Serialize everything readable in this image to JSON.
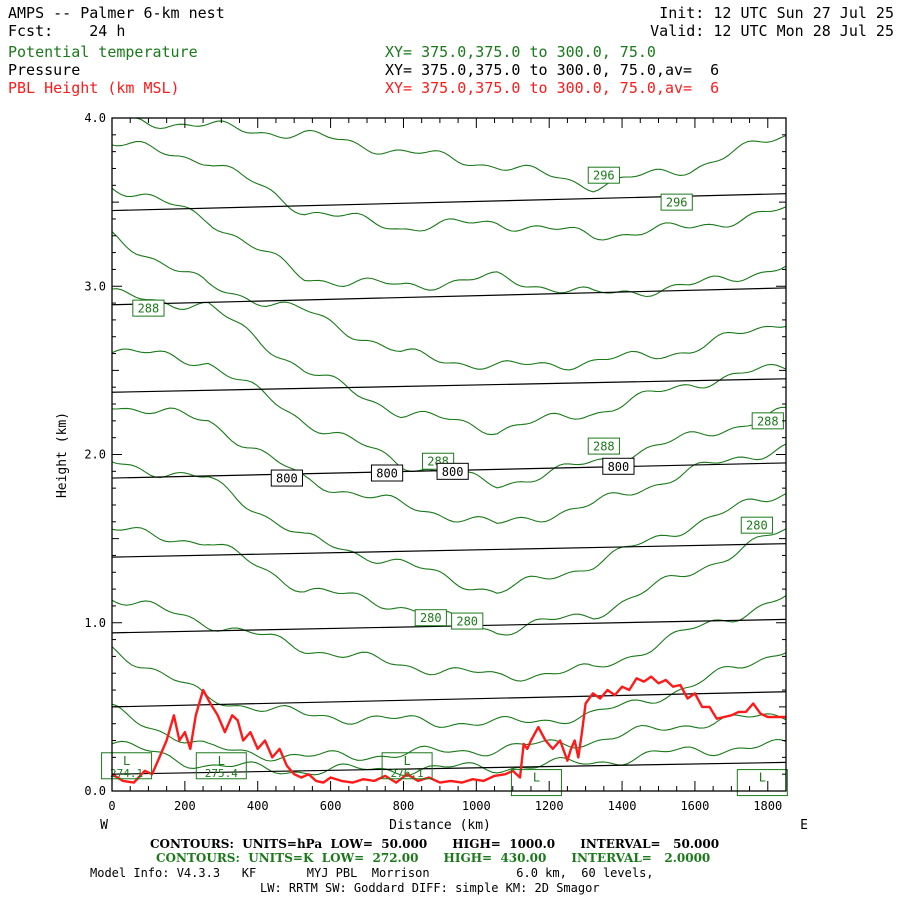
{
  "header": {
    "model_title": "AMPS -- Palmer 6-km nest",
    "fcst": "Fcst:    24 h",
    "init": "Init: 12 UTC Sun 27 Jul 25",
    "valid": "Valid: 12 UTC Mon 28 Jul 25",
    "field1_name": "Potential temperature",
    "field1_xy": "XY= 375.0,375.0 to 300.0, 75.0",
    "field2_name": "Pressure",
    "field2_xy": "XY= 375.0,375.0 to 300.0, 75.0,av=  6",
    "field3_name": "PBL Height (km MSL)",
    "field3_xy": "XY= 375.0,375.0 to 300.0, 75.0,av=  6"
  },
  "colors": {
    "theta": "#1a7a1a",
    "pressure": "#000000",
    "pbl": "#ff1a1a"
  },
  "chart_data": {
    "type": "line",
    "xlabel": "Distance (km)",
    "ylabel": "Height (km)",
    "xlim": [
      0,
      1850
    ],
    "ylim": [
      0,
      4.0
    ],
    "x_ticks": [
      "0",
      "200",
      "400",
      "600",
      "800",
      "1000",
      "1200",
      "1400",
      "1600",
      "1800"
    ],
    "y_ticks": [
      "0.0",
      "1.0",
      "2.0",
      "3.0",
      "4.0"
    ],
    "left_label": "W",
    "right_label": "E",
    "pressure_isobars": [
      {
        "left": 0.1,
        "right": 0.17
      },
      {
        "left": 0.5,
        "right": 0.59
      },
      {
        "left": 0.94,
        "right": 1.02
      },
      {
        "left": 1.39,
        "right": 1.47
      },
      {
        "left": 1.86,
        "right": 1.95
      },
      {
        "left": 2.37,
        "right": 2.45
      },
      {
        "left": 2.89,
        "right": 2.99
      },
      {
        "left": 3.45,
        "right": 3.55
      }
    ],
    "pressure_labels": [
      {
        "text": "800",
        "x": 480,
        "y": 1.86
      },
      {
        "text": "800",
        "x": 755,
        "y": 1.89
      },
      {
        "text": "800",
        "x": 935,
        "y": 1.9
      },
      {
        "text": "800",
        "x": 1390,
        "y": 1.93
      }
    ],
    "theta_contours": [
      {
        "base": [
          0.28,
          0.15,
          0.12,
          0.13,
          0.14,
          0.17,
          0.24,
          0.27
        ]
      },
      {
        "base": [
          0.48,
          0.25,
          0.2,
          0.22,
          0.25,
          0.3,
          0.4,
          0.45
        ]
      },
      {
        "base": [
          0.85,
          0.55,
          0.45,
          0.42,
          0.4,
          0.45,
          0.62,
          0.85
        ]
      },
      {
        "base": [
          1.15,
          1.0,
          0.85,
          0.75,
          0.68,
          0.72,
          0.95,
          1.15
        ]
      },
      {
        "base": [
          1.55,
          1.48,
          1.2,
          1.1,
          0.95,
          1.05,
          1.3,
          1.55
        ]
      },
      {
        "base": [
          1.95,
          1.85,
          1.5,
          1.35,
          1.18,
          1.35,
          1.58,
          1.78
        ]
      },
      {
        "base": [
          2.3,
          2.2,
          1.85,
          1.7,
          1.58,
          1.7,
          1.9,
          2.05
        ]
      },
      {
        "base": [
          2.62,
          2.55,
          2.2,
          1.95,
          1.82,
          1.95,
          2.1,
          2.25
        ]
      },
      {
        "base": [
          2.95,
          2.88,
          2.5,
          2.25,
          2.15,
          2.25,
          2.42,
          2.52
        ]
      },
      {
        "base": [
          3.3,
          3.0,
          2.85,
          2.6,
          2.52,
          2.55,
          2.62,
          2.8
        ]
      },
      {
        "base": [
          3.6,
          3.4,
          3.05,
          3.0,
          3.05,
          2.95,
          3.0,
          3.12
        ]
      },
      {
        "base": [
          3.85,
          3.75,
          3.45,
          3.35,
          3.38,
          3.3,
          3.35,
          3.45
        ]
      },
      {
        "base": [
          4.0,
          3.95,
          3.9,
          3.8,
          3.72,
          3.6,
          3.7,
          3.9
        ]
      }
    ],
    "theta_labels": [
      {
        "text": "296",
        "x": 1350,
        "y": 3.66
      },
      {
        "text": "296",
        "x": 1550,
        "y": 3.5
      },
      {
        "text": "288",
        "x": 100,
        "y": 2.87
      },
      {
        "text": "288",
        "x": 1800,
        "y": 2.2
      },
      {
        "text": "288",
        "x": 1350,
        "y": 2.05
      },
      {
        "text": "288",
        "x": 895,
        "y": 1.96
      },
      {
        "text": "280",
        "x": 1770,
        "y": 1.58
      },
      {
        "text": "280",
        "x": 875,
        "y": 1.03
      },
      {
        "text": "280",
        "x": 975,
        "y": 1.01
      }
    ],
    "pbl_series": {
      "x": [
        0,
        30,
        60,
        90,
        110,
        130,
        150,
        170,
        185,
        200,
        215,
        230,
        250,
        270,
        290,
        310,
        330,
        345,
        360,
        380,
        400,
        420,
        440,
        460,
        480,
        500,
        520,
        540,
        560,
        580,
        600,
        630,
        660,
        690,
        720,
        750,
        780,
        810,
        840,
        870,
        900,
        930,
        960,
        990,
        1020,
        1050,
        1080,
        1100,
        1120,
        1130,
        1140,
        1150,
        1170,
        1190,
        1210,
        1230,
        1250,
        1260,
        1270,
        1280,
        1290,
        1300,
        1320,
        1340,
        1360,
        1380,
        1400,
        1420,
        1440,
        1460,
        1480,
        1500,
        1520,
        1540,
        1560,
        1580,
        1600,
        1620,
        1640,
        1660,
        1680,
        1700,
        1720,
        1740,
        1760,
        1780,
        1800,
        1820,
        1850
      ],
      "y": [
        0.1,
        0.06,
        0.05,
        0.12,
        0.1,
        0.2,
        0.3,
        0.45,
        0.3,
        0.35,
        0.25,
        0.45,
        0.6,
        0.52,
        0.45,
        0.35,
        0.45,
        0.42,
        0.3,
        0.35,
        0.25,
        0.3,
        0.2,
        0.25,
        0.15,
        0.1,
        0.08,
        0.1,
        0.06,
        0.05,
        0.08,
        0.06,
        0.05,
        0.07,
        0.06,
        0.09,
        0.05,
        0.1,
        0.06,
        0.08,
        0.05,
        0.06,
        0.05,
        0.07,
        0.06,
        0.09,
        0.1,
        0.12,
        0.08,
        0.28,
        0.25,
        0.3,
        0.38,
        0.3,
        0.25,
        0.3,
        0.18,
        0.25,
        0.3,
        0.2,
        0.35,
        0.52,
        0.58,
        0.55,
        0.6,
        0.57,
        0.62,
        0.6,
        0.67,
        0.65,
        0.68,
        0.64,
        0.66,
        0.62,
        0.63,
        0.55,
        0.58,
        0.5,
        0.5,
        0.43,
        0.44,
        0.45,
        0.47,
        0.47,
        0.52,
        0.46,
        0.44,
        0.44,
        0.44
      ]
    },
    "min_labels": [
      {
        "text": "L",
        "value": "274.1",
        "x": 40,
        "y": 0.15
      },
      {
        "text": "L",
        "value": "275.4",
        "x": 300,
        "y": 0.15
      },
      {
        "text": "L",
        "value": "276.1",
        "x": 810,
        "y": 0.15
      },
      {
        "text": "L",
        "value": "",
        "x": 1165,
        "y": 0.05
      },
      {
        "text": "L",
        "value": "",
        "x": 1785,
        "y": 0.05
      }
    ]
  },
  "footer": {
    "line1": "CONTOURS:  UNITS=hPa  LOW=  50.000      HIGH=  1000.0      INTERVAL=   50.000",
    "line2": "CONTOURS:  UNITS=K  LOW=  272.00      HIGH=  430.00      INTERVAL=   2.0000",
    "line3": "Model Info: V4.3.3   KF       MYJ PBL  Morrison            6.0 km,  60 levels,",
    "line4": "LW: RRTM SW: Goddard DIFF: simple KM: 2D Smagor"
  }
}
